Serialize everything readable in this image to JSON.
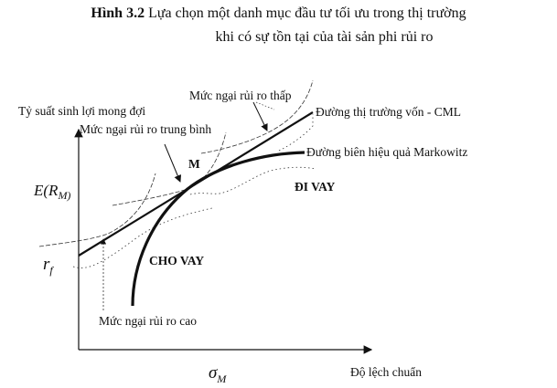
{
  "title": {
    "figure_number": "Hình 3.2",
    "line1": "Lựa chọn một danh mục đầu tư tối ưu trong thị trường",
    "line2": "khi có sự tồn tại của tài sản phi rủi ro"
  },
  "diagram": {
    "y_axis_label": "Tỷ suất sinh lợi mong đợi",
    "x_axis_label": "Độ lệch chuẩn",
    "y_tick_market_return": "E(R",
    "y_tick_market_sub": "M)",
    "y_tick_risk_free": "r",
    "y_tick_risk_free_sub": "f",
    "x_tick_sigma": "σ",
    "x_tick_sigma_sub": "M",
    "point_m": "M",
    "cml_label": "Đường thị trường vốn - CML",
    "frontier_label": "Đường biên hiệu quả Markowitz",
    "borrowing_label": "ĐI VAY",
    "lending_label": "CHO VAY",
    "low_aversion_label": "Mức ngại rủi ro thấp",
    "medium_aversion_label": "Mức ngại rủi ro trung bình",
    "high_aversion_label": "Mức ngại rủi ro cao"
  }
}
